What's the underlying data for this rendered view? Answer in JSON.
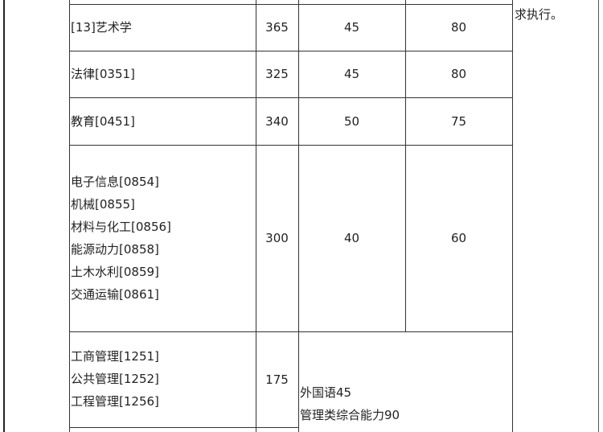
{
  "side_note": "求执行。",
  "rows": [
    {
      "majors": [
        "[13]艺术学"
      ],
      "total": "365",
      "score_a": "45",
      "score_b": "80"
    },
    {
      "majors": [
        "法律[0351]"
      ],
      "total": "325",
      "score_a": "45",
      "score_b": "80"
    },
    {
      "majors": [
        "教育[0451]"
      ],
      "total": "340",
      "score_a": "50",
      "score_b": "75"
    },
    {
      "majors": [
        "电子信息[0854]",
        "机械[0855]",
        "材料与化工[0856]",
        "能源动力[0858]",
        "土木水利[0859]",
        "交通运输[0861]"
      ],
      "total": "300",
      "score_a": "40",
      "score_b": "60"
    },
    {
      "majors": [
        "工商管理[1251]",
        "公共管理[1252]",
        "工程管理[1256]"
      ],
      "total": "175",
      "merged_scores": [
        "外国语45",
        "管理类综合能力90"
      ]
    }
  ]
}
